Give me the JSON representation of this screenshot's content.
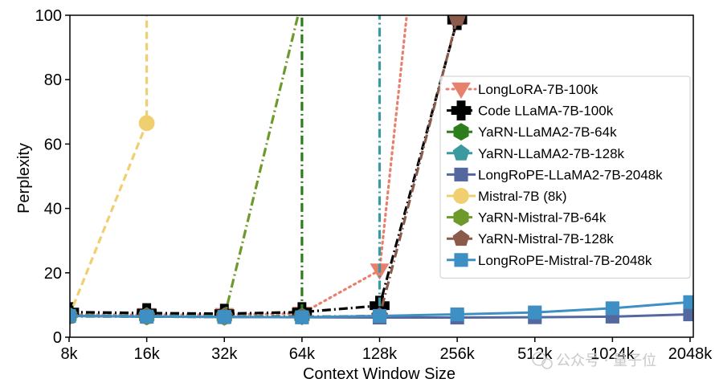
{
  "chart_data": {
    "type": "line",
    "title": "",
    "xlabel": "Context Window Size",
    "ylabel": "Perplexity",
    "ylim": [
      0,
      100
    ],
    "yticks": [
      "0",
      "20",
      "40",
      "60",
      "80",
      "100"
    ],
    "categories": [
      "8k",
      "16k",
      "32k",
      "64k",
      "128k",
      "256k",
      "512k",
      "1024k",
      "2048k"
    ],
    "grid": false,
    "legend_position": "right",
    "series": [
      {
        "name": "LongLoRA-7B-100k",
        "color": "#e8806e",
        "dash": "dotted",
        "marker": "triangle-down",
        "points": [
          [
            0,
            7.0
          ],
          [
            1,
            7.0
          ],
          [
            2,
            7.0
          ],
          [
            3,
            7.4
          ],
          [
            4,
            20.8
          ],
          [
            4.35,
            100
          ]
        ]
      },
      {
        "name": "Code LLaMA-7B-100k",
        "color": "#000000",
        "dash": "dashdot",
        "marker": "plus",
        "points": [
          [
            0,
            7.8
          ],
          [
            1,
            7.5
          ],
          [
            2,
            7.3
          ],
          [
            3,
            7.8
          ],
          [
            4,
            9.8
          ],
          [
            5,
            98.5
          ]
        ]
      },
      {
        "name": "YaRN-LLaMA2-7B-64k",
        "color": "#2e7d1c",
        "dash": "dashdot",
        "marker": "hexagon",
        "points": [
          [
            0,
            6.8
          ],
          [
            1,
            6.6
          ],
          [
            2,
            6.5
          ],
          [
            3,
            6.5
          ],
          [
            3.0,
            100
          ]
        ]
      },
      {
        "name": "YaRN-LLaMA2-7B-128k",
        "color": "#3a9aa0",
        "dash": "dashdot",
        "marker": "pentagon",
        "points": [
          [
            0,
            6.8
          ],
          [
            1,
            6.6
          ],
          [
            2,
            6.5
          ],
          [
            3,
            6.4
          ],
          [
            4,
            6.5
          ],
          [
            4.0,
            100
          ]
        ]
      },
      {
        "name": "LongRoPE-LLaMA2-7B-2048k",
        "color": "#5468a0",
        "dash": "solid",
        "marker": "square",
        "points": [
          [
            0,
            6.6
          ],
          [
            1,
            6.4
          ],
          [
            2,
            6.3
          ],
          [
            3,
            6.2
          ],
          [
            4,
            6.1
          ],
          [
            5,
            6.1
          ],
          [
            6,
            6.2
          ],
          [
            7,
            6.4
          ],
          [
            8,
            7.1
          ]
        ]
      },
      {
        "name": "Mistral-7B (8k)",
        "color": "#f0cf70",
        "dash": "dashed",
        "marker": "circle",
        "points": [
          [
            0,
            6.5
          ],
          [
            1,
            66.5
          ],
          [
            1,
            100
          ]
        ]
      },
      {
        "name": "YaRN-Mistral-7B-64k",
        "color": "#6e9a2c",
        "dash": "dashdot",
        "marker": "hexagon",
        "points": [
          [
            0,
            6.5
          ],
          [
            1,
            6.4
          ],
          [
            2,
            6.3
          ],
          [
            2.95,
            100
          ]
        ]
      },
      {
        "name": "YaRN-Mistral-7B-128k",
        "color": "#8a5a4a",
        "dash": "dashdot",
        "marker": "pentagon",
        "points": [
          [
            0,
            6.5
          ],
          [
            1,
            6.4
          ],
          [
            2,
            6.3
          ],
          [
            3,
            6.3
          ],
          [
            4,
            6.6
          ],
          [
            5,
            99.0
          ]
        ]
      },
      {
        "name": "LongRoPE-Mistral-7B-2048k",
        "color": "#3d8fc4",
        "dash": "solid",
        "marker": "square",
        "points": [
          [
            0,
            6.6
          ],
          [
            1,
            6.4
          ],
          [
            2,
            6.3
          ],
          [
            3,
            6.2
          ],
          [
            4,
            6.6
          ],
          [
            5,
            7.1
          ],
          [
            6,
            7.7
          ],
          [
            7,
            9.0
          ],
          [
            8,
            10.9
          ]
        ]
      }
    ]
  },
  "watermark": "公众号 · 量子位"
}
